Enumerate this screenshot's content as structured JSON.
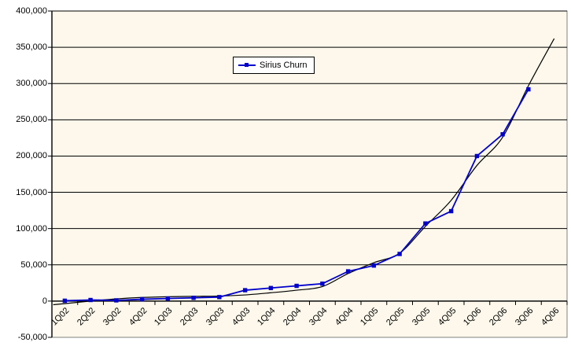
{
  "chart_data": {
    "type": "line",
    "title": "",
    "categories": [
      "1Q02",
      "2Q02",
      "3Q02",
      "4Q02",
      "1Q03",
      "2Q03",
      "3Q03",
      "4Q03",
      "1Q04",
      "2Q04",
      "3Q04",
      "4Q04",
      "1Q05",
      "2Q05",
      "3Q05",
      "4Q05",
      "1Q06",
      "2Q06",
      "3Q06",
      "4Q06"
    ],
    "series": [
      {
        "name": "Sirius Churn",
        "color": "#0000CC",
        "marker": "square",
        "values": [
          500,
          1500,
          1000,
          2500,
          3500,
          4500,
          5500,
          15000,
          18000,
          21000,
          24000,
          41000,
          49000,
          65000,
          107000,
          124000,
          200000,
          230000,
          292000,
          null
        ]
      }
    ],
    "trendline": {
      "name": "trend-curve",
      "color": "#000000",
      "x": [
        -0.45,
        0,
        1,
        2,
        3,
        4,
        5,
        6,
        7,
        8,
        9,
        10,
        11,
        12,
        13,
        14,
        15,
        16,
        17,
        18,
        19
      ],
      "values": [
        -5000,
        -3500,
        0,
        3000,
        5000,
        6000,
        6500,
        7000,
        8500,
        11500,
        15000,
        20000,
        38000,
        53000,
        66000,
        103000,
        139000,
        187000,
        226000,
        297000,
        362000
      ]
    },
    "ylim": [
      -50000,
      400000
    ],
    "ytick_step": 50000,
    "y_tick_labels": [
      "400,000",
      "350,000",
      "300,000",
      "250,000",
      "200,000",
      "150,000",
      "100,000",
      "50,000",
      "0",
      "-50,000"
    ],
    "grid": true,
    "legend_position": "inside-top-center",
    "colors": {
      "plot_bg": "#FDF8EB",
      "plot_border": "#808080",
      "gridline": "#000000",
      "axis": "#000000",
      "label": "#000000",
      "legend_bg": "#FFFFFF"
    }
  }
}
